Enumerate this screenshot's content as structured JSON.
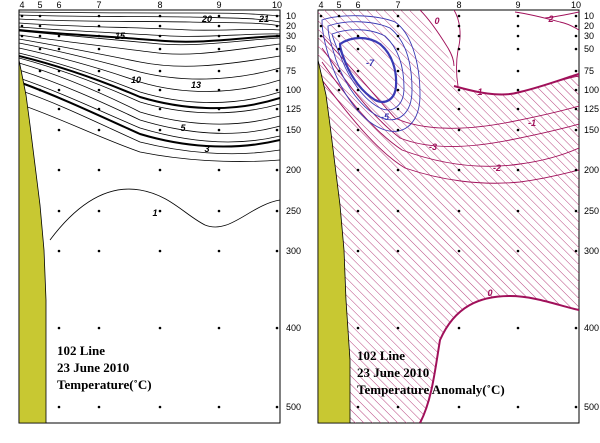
{
  "left_panel": {
    "caption_line1": "102 Line",
    "caption_line2": "23 June 2010",
    "caption_line3": "Temperature(˚C)",
    "contour_labels": [
      "20",
      "21",
      "15",
      "10",
      "13",
      "5",
      "3",
      "1"
    ]
  },
  "right_panel": {
    "caption_line1": "102 Line",
    "caption_line2": "23 June 2010",
    "caption_line3": "Temperature Anomaly(˚C)",
    "contour_labels": [
      "0",
      "2",
      "-7",
      "-5",
      "1",
      "-1",
      "-3",
      "-2",
      "0"
    ]
  },
  "station_labels": [
    "4",
    "5",
    "6",
    "7",
    "8",
    "9",
    "10"
  ],
  "depth_labels": [
    "10",
    "20",
    "30",
    "50",
    "75",
    "100",
    "125",
    "150",
    "200",
    "250",
    "300",
    "400",
    "500"
  ],
  "colors": {
    "coast": "#c8c832",
    "anomaly_positive": "#a0105a",
    "anomaly_negative": "#3a3ab4",
    "contour": "#000000"
  }
}
